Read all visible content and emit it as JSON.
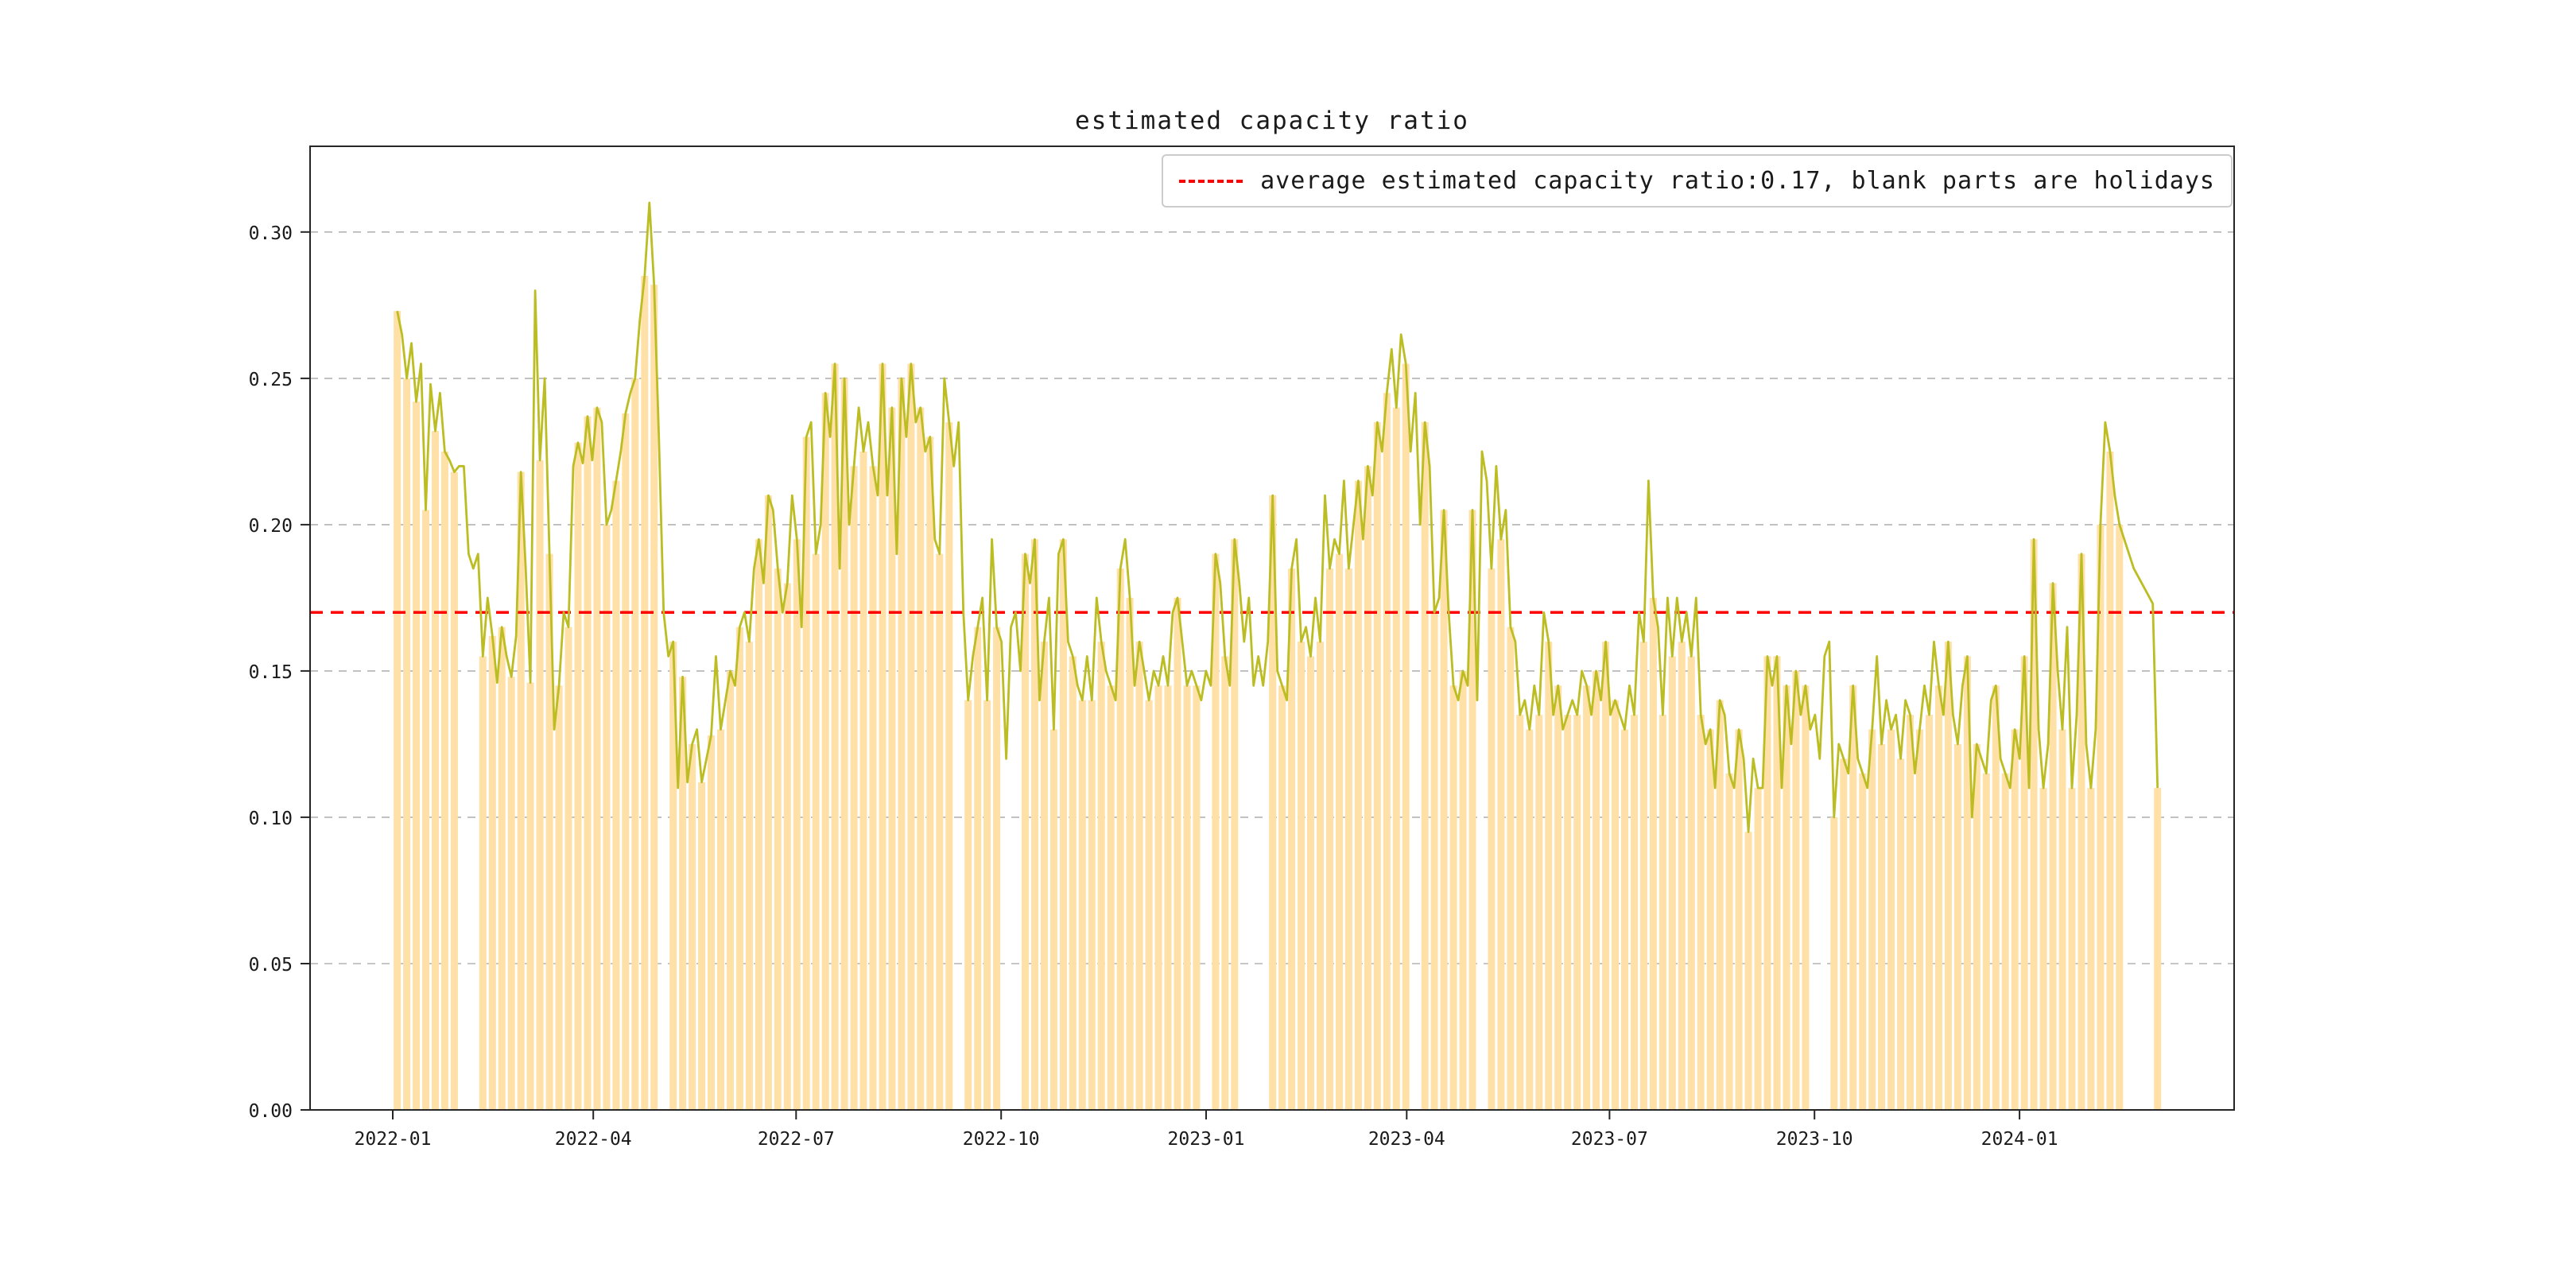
{
  "title": "estimated capacity ratio",
  "legend": {
    "label": "average estimated capacity ratio:0.17, blank parts are holidays"
  },
  "chart_data": {
    "type": "bar+line",
    "title": "estimated capacity ratio",
    "series_name": "estimated capacity ratio",
    "average": 0.17,
    "legend_entry": "average estimated capacity ratio:0.17, blank parts are holidays",
    "note": "blank parts are holidays",
    "x_epoch_date": "2022-01-01",
    "x_start_day": 2,
    "x_step_days": 2.135,
    "x_end_date_approx": "2024-03-02",
    "bar_step_points": 2,
    "xlim_days": [
      -37.1,
      826.3
    ],
    "ylim": [
      0,
      0.3293
    ],
    "yticks": [
      0.0,
      0.05,
      0.1,
      0.15,
      0.2,
      0.25,
      0.3
    ],
    "ytick_labels": [
      "0.00",
      "0.05",
      "0.10",
      "0.15",
      "0.20",
      "0.25",
      "0.30"
    ],
    "xtick_days": [
      0,
      90,
      181,
      273,
      365,
      455,
      546,
      638,
      730
    ],
    "xtick_labels": [
      "2022-01",
      "2022-04",
      "2022-07",
      "2022-10",
      "2023-01",
      "2023-04",
      "2023-07",
      "2023-10",
      "2024-01"
    ],
    "grid": "horizontal dashed",
    "legend_position": "upper right",
    "colors": {
      "bar": "#ffe0a6",
      "line": "#bcbd22",
      "average": "#ff0000",
      "grid": "#b3b3b3",
      "axes": "#262626"
    },
    "holiday_day_ranges": [
      [
        29,
        37
      ],
      [
        63,
        66
      ],
      [
        119,
        124
      ],
      [
        152,
        155
      ],
      [
        251,
        254
      ],
      [
        272,
        282
      ],
      [
        364,
        366
      ],
      [
        381,
        391
      ],
      [
        457,
        460
      ],
      [
        485,
        489
      ],
      [
        536,
        540
      ],
      [
        635,
        645
      ],
      [
        729,
        731
      ],
      [
        778,
        791
      ]
    ],
    "values": [
      0.273,
      0.265,
      0.25,
      0.262,
      0.242,
      0.255,
      0.205,
      0.248,
      0.232,
      0.245,
      0.225,
      0.222,
      0.218,
      0.22,
      0.22,
      0.19,
      0.185,
      0.19,
      0.155,
      0.175,
      0.162,
      0.146,
      0.165,
      0.155,
      0.148,
      0.162,
      0.218,
      0.185,
      0.146,
      0.28,
      0.222,
      0.25,
      0.19,
      0.13,
      0.145,
      0.17,
      0.165,
      0.22,
      0.228,
      0.221,
      0.237,
      0.222,
      0.24,
      0.235,
      0.2,
      0.205,
      0.215,
      0.225,
      0.238,
      0.245,
      0.25,
      0.27,
      0.285,
      0.31,
      0.282,
      0.23,
      0.17,
      0.155,
      0.16,
      0.11,
      0.148,
      0.112,
      0.125,
      0.13,
      0.112,
      0.12,
      0.128,
      0.155,
      0.13,
      0.14,
      0.15,
      0.145,
      0.165,
      0.17,
      0.16,
      0.185,
      0.195,
      0.18,
      0.21,
      0.205,
      0.185,
      0.17,
      0.18,
      0.21,
      0.195,
      0.165,
      0.23,
      0.235,
      0.19,
      0.2,
      0.245,
      0.23,
      0.255,
      0.185,
      0.25,
      0.2,
      0.22,
      0.24,
      0.225,
      0.235,
      0.22,
      0.21,
      0.255,
      0.21,
      0.24,
      0.19,
      0.25,
      0.23,
      0.255,
      0.235,
      0.24,
      0.225,
      0.23,
      0.195,
      0.19,
      0.25,
      0.235,
      0.22,
      0.235,
      0.17,
      0.14,
      0.155,
      0.165,
      0.175,
      0.14,
      0.195,
      0.165,
      0.16,
      0.12,
      0.165,
      0.17,
      0.15,
      0.19,
      0.18,
      0.195,
      0.14,
      0.16,
      0.175,
      0.13,
      0.19,
      0.195,
      0.16,
      0.155,
      0.145,
      0.14,
      0.155,
      0.14,
      0.175,
      0.16,
      0.15,
      0.145,
      0.14,
      0.185,
      0.195,
      0.175,
      0.145,
      0.16,
      0.15,
      0.14,
      0.15,
      0.145,
      0.155,
      0.145,
      0.17,
      0.175,
      0.16,
      0.145,
      0.15,
      0.145,
      0.14,
      0.15,
      0.145,
      0.19,
      0.18,
      0.155,
      0.145,
      0.195,
      0.18,
      0.16,
      0.175,
      0.145,
      0.155,
      0.145,
      0.16,
      0.21,
      0.15,
      0.145,
      0.14,
      0.185,
      0.195,
      0.16,
      0.165,
      0.155,
      0.175,
      0.16,
      0.21,
      0.185,
      0.195,
      0.19,
      0.215,
      0.185,
      0.2,
      0.215,
      0.195,
      0.22,
      0.21,
      0.235,
      0.225,
      0.245,
      0.26,
      0.24,
      0.265,
      0.255,
      0.225,
      0.245,
      0.2,
      0.235,
      0.22,
      0.17,
      0.175,
      0.205,
      0.17,
      0.145,
      0.14,
      0.15,
      0.145,
      0.205,
      0.14,
      0.225,
      0.215,
      0.185,
      0.22,
      0.195,
      0.205,
      0.165,
      0.16,
      0.135,
      0.14,
      0.13,
      0.145,
      0.135,
      0.17,
      0.16,
      0.135,
      0.145,
      0.13,
      0.135,
      0.14,
      0.135,
      0.15,
      0.145,
      0.135,
      0.15,
      0.14,
      0.16,
      0.135,
      0.14,
      0.135,
      0.13,
      0.145,
      0.135,
      0.17,
      0.16,
      0.215,
      0.175,
      0.165,
      0.135,
      0.175,
      0.155,
      0.175,
      0.16,
      0.17,
      0.155,
      0.175,
      0.135,
      0.125,
      0.13,
      0.11,
      0.14,
      0.135,
      0.115,
      0.11,
      0.13,
      0.12,
      0.095,
      0.12,
      0.11,
      0.11,
      0.155,
      0.145,
      0.155,
      0.11,
      0.145,
      0.125,
      0.15,
      0.135,
      0.145,
      0.13,
      0.135,
      0.12,
      0.155,
      0.16,
      0.1,
      0.125,
      0.12,
      0.115,
      0.145,
      0.12,
      0.115,
      0.11,
      0.13,
      0.155,
      0.125,
      0.14,
      0.13,
      0.135,
      0.12,
      0.14,
      0.135,
      0.115,
      0.13,
      0.145,
      0.135,
      0.16,
      0.145,
      0.135,
      0.16,
      0.135,
      0.125,
      0.145,
      0.155,
      0.1,
      0.125,
      0.12,
      0.115,
      0.14,
      0.145,
      0.12,
      0.115,
      0.11,
      0.13,
      0.12,
      0.155,
      0.11,
      0.195,
      0.13,
      0.11,
      0.125,
      0.18,
      0.15,
      0.13,
      0.165,
      0.11,
      0.135,
      0.19,
      0.125,
      0.11,
      0.13,
      0.2,
      0.235,
      0.225,
      0.21,
      0.2,
      0.195,
      0.19,
      0.185,
      0.182,
      0.179,
      0.176,
      0.173,
      0.11
    ]
  }
}
